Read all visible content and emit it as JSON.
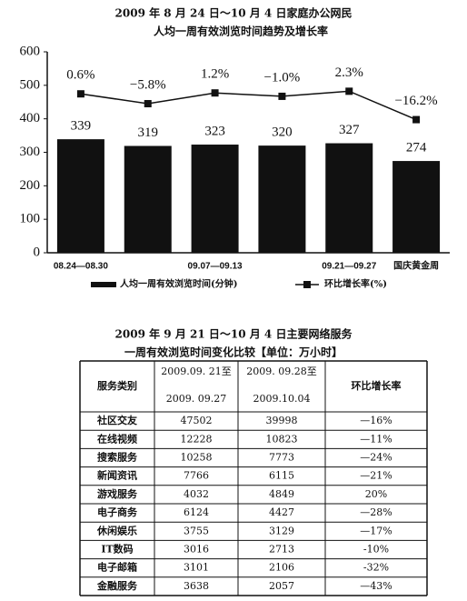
{
  "chart_data": {
    "type": "bar",
    "title": [
      "2009 年 8 月 24 日～10 月 4 日家庭办公网民",
      "人均一周有效浏览时间趋势及增长率"
    ],
    "categories": [
      "08.24—08.30",
      null,
      "09.07—09.13",
      null,
      "09.21—09.27",
      "国庆黄金周"
    ],
    "series": [
      {
        "name": "人均一周有效浏览时间(分钟)",
        "type": "bar",
        "color": "#111111",
        "values": [
          339,
          319,
          323,
          320,
          327,
          274
        ]
      },
      {
        "name": "环比增长率(%)",
        "type": "line",
        "axis": "y2",
        "color": "#111111",
        "values": [
          0.6,
          -5.8,
          1.2,
          -1.0,
          2.3,
          -16.2
        ],
        "value_labels": [
          "0.6%",
          "−5.8%",
          "1.2%",
          "−1.0%",
          "2.3%",
          "−16.2%"
        ]
      }
    ],
    "ylim": [
      0,
      600
    ],
    "yticks": [
      0,
      100,
      200,
      300,
      400,
      500,
      600
    ],
    "y2lim": [
      -103,
      28
    ],
    "grid": false,
    "legend": "bottom"
  },
  "table": {
    "title": [
      "2009 年 9 月 21 日～10 月 4 日主要网络服务",
      "一周有效浏览时间变化比较【单位：万小时】"
    ],
    "header": [
      "服务类别",
      [
        "2009.09. 21至",
        "2009. 09.27"
      ],
      [
        "2009. 09.28至",
        "2009.10.04"
      ],
      "环比增长率"
    ],
    "rows": [
      [
        "社区交友",
        47502,
        39998,
        "—16%"
      ],
      [
        "在线视频",
        12228,
        10823,
        "—11%"
      ],
      [
        "搜索服务",
        10258,
        7773,
        "—24%"
      ],
      [
        "新闻资讯",
        7766,
        6115,
        "—21%"
      ],
      [
        "游戏服务",
        4032,
        4849,
        "20%"
      ],
      [
        "电子商务",
        6124,
        4427,
        "—28%"
      ],
      [
        "休闲娱乐",
        3755,
        3129,
        "—17%"
      ],
      [
        "IT数码",
        3016,
        2713,
        "-10%"
      ],
      [
        "电子邮箱",
        3101,
        2106,
        "-32%"
      ],
      [
        "金融服务",
        3638,
        2057,
        "—43%"
      ]
    ]
  }
}
